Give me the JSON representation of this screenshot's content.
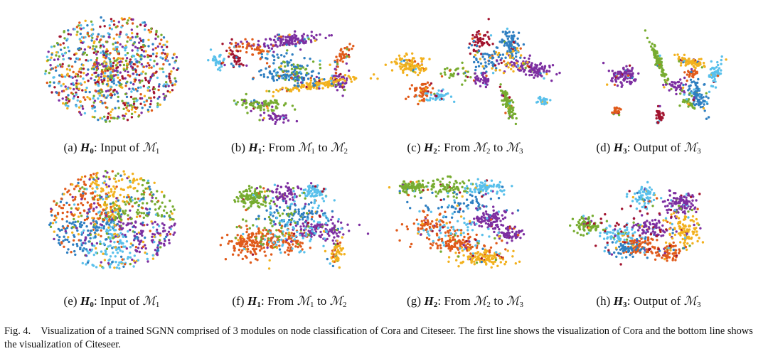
{
  "palette": [
    "#7d2fa1",
    "#f2b11e",
    "#2f7fc1",
    "#77ac30",
    "#e05a1a",
    "#59c0eb",
    "#a2142f"
  ],
  "panels": [
    {
      "id": "a",
      "row": 0,
      "col": 0,
      "label": "(a)",
      "symbol": "H",
      "subscript": "0",
      "text_before": ": Input of ",
      "module_a": "1",
      "connector": "",
      "module_b": "",
      "style": "random"
    },
    {
      "id": "b",
      "row": 0,
      "col": 1,
      "label": "(b)",
      "symbol": "H",
      "subscript": "1",
      "text_before": ": From ",
      "module_a": "1",
      "connector": " to ",
      "module_b": "2",
      "style": "cora1"
    },
    {
      "id": "c",
      "row": 0,
      "col": 2,
      "label": "(c)",
      "symbol": "H",
      "subscript": "2",
      "text_before": ": From ",
      "module_a": "2",
      "connector": " to ",
      "module_b": "3",
      "style": "cora2"
    },
    {
      "id": "d",
      "row": 0,
      "col": 3,
      "label": "(d)",
      "symbol": "H",
      "subscript": "3",
      "text_before": ": Output of ",
      "module_a": "3",
      "connector": "",
      "module_b": "",
      "style": "cora3"
    },
    {
      "id": "e",
      "row": 1,
      "col": 0,
      "label": "(e)",
      "symbol": "H",
      "subscript": "0",
      "text_before": ": Input of ",
      "module_a": "1",
      "connector": "",
      "module_b": "",
      "style": "random"
    },
    {
      "id": "f",
      "row": 1,
      "col": 1,
      "label": "(f)",
      "symbol": "H",
      "subscript": "1",
      "text_before": ": From ",
      "module_a": "1",
      "connector": " to ",
      "module_b": "2",
      "style": "cite1"
    },
    {
      "id": "g",
      "row": 1,
      "col": 2,
      "label": "(g)",
      "symbol": "H",
      "subscript": "2",
      "text_before": ": From ",
      "module_a": "2",
      "connector": " to ",
      "module_b": "3",
      "style": "cite2"
    },
    {
      "id": "h",
      "row": 1,
      "col": 3,
      "label": "(h)",
      "symbol": "H",
      "subscript": "3",
      "text_before": ": Output of ",
      "module_a": "3",
      "connector": "",
      "module_b": "",
      "style": "cite3"
    }
  ],
  "caption": {
    "label": "Fig. 4.",
    "text": "Visualization of a trained SGNN comprised of 3 modules on node classification of Cora and Citeseer. The first line shows the visualization of Cora and the bottom line shows the visualization of Citeseer."
  }
}
